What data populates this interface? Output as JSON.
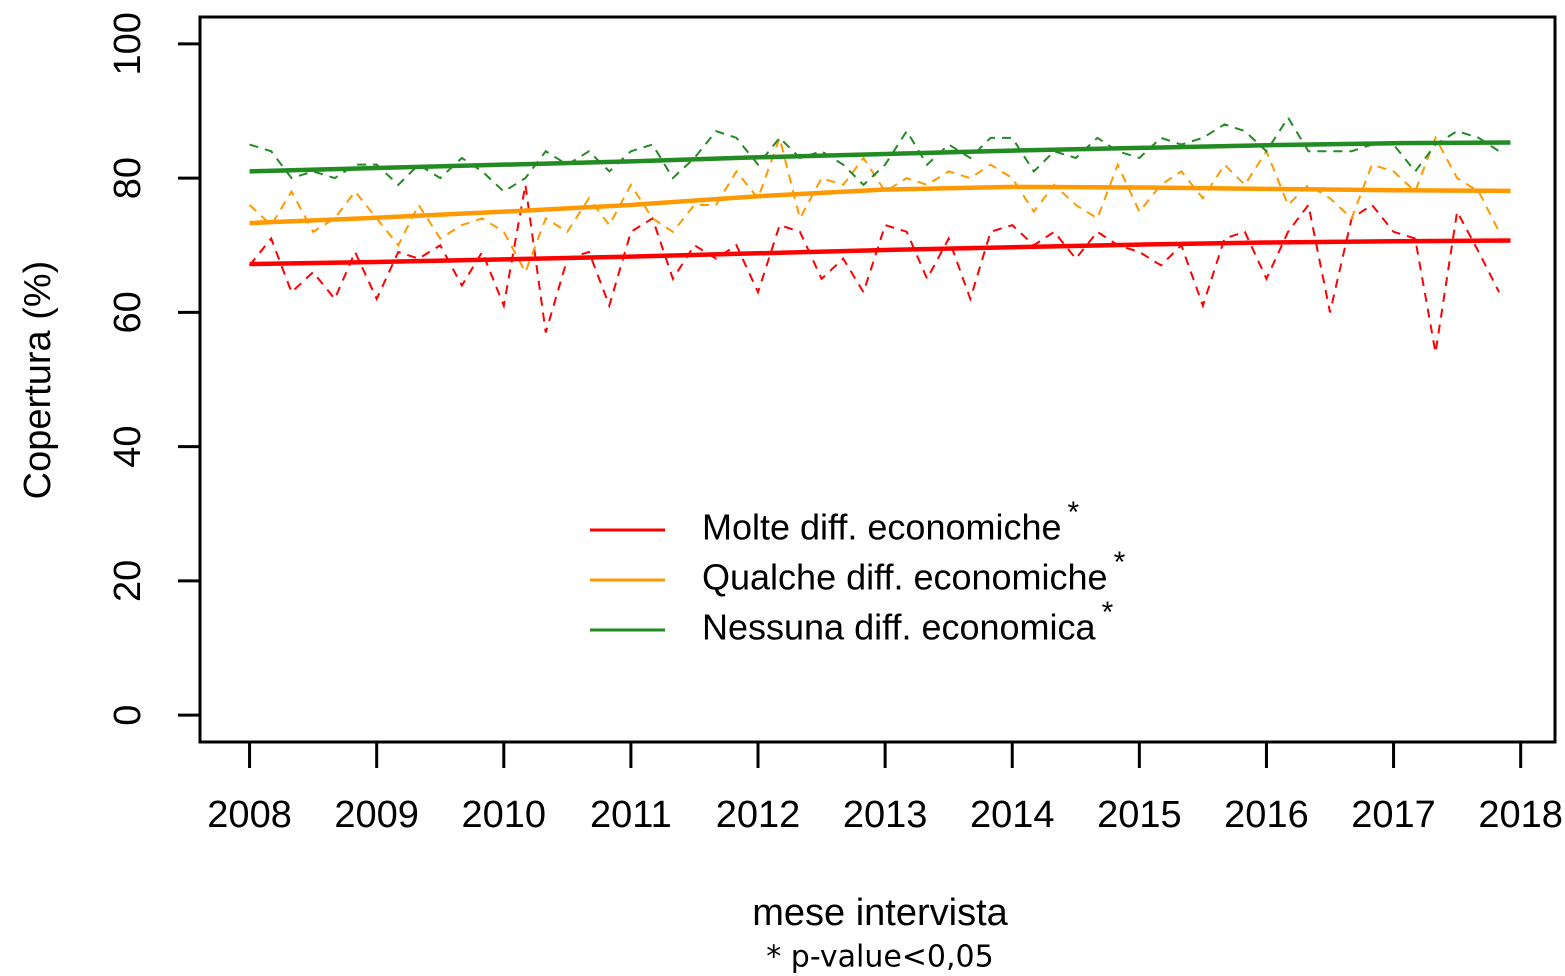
{
  "chart_data": {
    "type": "line",
    "x_label": "mese intervista",
    "y_label": "Copertura (%)",
    "footnote": "* p-value<0,05",
    "significance_mark": "*",
    "xlim": [
      2007.61,
      2018.27
    ],
    "ylim": [
      -4,
      104
    ],
    "xticks": [
      2008,
      2009,
      2010,
      2011,
      2012,
      2013,
      2014,
      2015,
      2016,
      2017,
      2018
    ],
    "yticks": [
      0,
      20,
      40,
      60,
      80,
      100
    ],
    "x": [
      2008,
      2008.17,
      2008.33,
      2008.5,
      2008.67,
      2008.83,
      2009,
      2009.17,
      2009.33,
      2009.5,
      2009.67,
      2009.83,
      2010,
      2010.17,
      2010.33,
      2010.5,
      2010.67,
      2010.83,
      2011,
      2011.17,
      2011.33,
      2011.5,
      2011.67,
      2011.83,
      2012,
      2012.17,
      2012.33,
      2012.5,
      2012.67,
      2012.83,
      2013,
      2013.17,
      2013.33,
      2013.5,
      2013.67,
      2013.83,
      2014,
      2014.17,
      2014.33,
      2014.5,
      2014.67,
      2014.83,
      2015,
      2015.17,
      2015.33,
      2015.5,
      2015.67,
      2015.83,
      2016,
      2016.17,
      2016.33,
      2016.5,
      2016.67,
      2016.83,
      2017,
      2017.17,
      2017.33,
      2017.5,
      2017.67,
      2017.83
    ],
    "trend_x": [
      2008,
      2009,
      2010,
      2011,
      2012,
      2013,
      2014,
      2015,
      2016,
      2017,
      2017.92
    ],
    "legend": "center",
    "series": [
      {
        "name": "Molte diff. economiche",
        "color": "#ff0000",
        "values": [
          67,
          71,
          63,
          66,
          62,
          69,
          62,
          69,
          68,
          70,
          64,
          69,
          61,
          79,
          57,
          68,
          69,
          61,
          72,
          74,
          65,
          70,
          68,
          70,
          63,
          73,
          72,
          65,
          68,
          63,
          73,
          72,
          65,
          71,
          62,
          72,
          73,
          70,
          72,
          68,
          72,
          70,
          69,
          67,
          70,
          61,
          71,
          72,
          65,
          72,
          76,
          60,
          74,
          76,
          72,
          71,
          54,
          75,
          69,
          63
        ],
        "trend": [
          67.2,
          67.5,
          67.9,
          68.3,
          68.8,
          69.3,
          69.7,
          70.1,
          70.4,
          70.6,
          70.7
        ]
      },
      {
        "name": "Qualche diff. economiche",
        "color": "#ff9900",
        "values": [
          76,
          73,
          78,
          72,
          74,
          78,
          74,
          70,
          76,
          71,
          73,
          74,
          72,
          66,
          74,
          72,
          77,
          73,
          79,
          74,
          72,
          76,
          76,
          81,
          77,
          86,
          74,
          80,
          79,
          83,
          78,
          80,
          79,
          81,
          80,
          82,
          80,
          75,
          79,
          76,
          74,
          82,
          75,
          79,
          81,
          77,
          82,
          79,
          84,
          76,
          79,
          77,
          74,
          82,
          81,
          78,
          86,
          80,
          78,
          72
        ],
        "trend": [
          73.3,
          74.1,
          75.0,
          76.0,
          77.3,
          78.3,
          78.7,
          78.6,
          78.4,
          78.2,
          78.1
        ]
      },
      {
        "name": "Nessuna diff. economica",
        "color": "#228b22",
        "values": [
          85,
          84,
          80,
          81,
          80,
          82,
          82,
          79,
          82,
          80,
          83,
          81,
          78,
          80,
          84,
          82,
          84,
          81,
          84,
          85,
          80,
          83,
          87,
          86,
          82,
          86,
          83,
          84,
          82,
          79,
          82,
          87,
          82,
          85,
          83,
          86,
          86,
          81,
          84,
          83,
          86,
          84,
          83,
          86,
          85,
          86,
          88,
          87,
          84,
          89,
          84,
          84,
          84,
          85,
          85,
          81,
          85,
          87,
          86,
          84
        ],
        "trend": [
          81.0,
          81.5,
          82.0,
          82.5,
          83.1,
          83.6,
          84.1,
          84.5,
          84.9,
          85.2,
          85.3
        ]
      }
    ]
  }
}
